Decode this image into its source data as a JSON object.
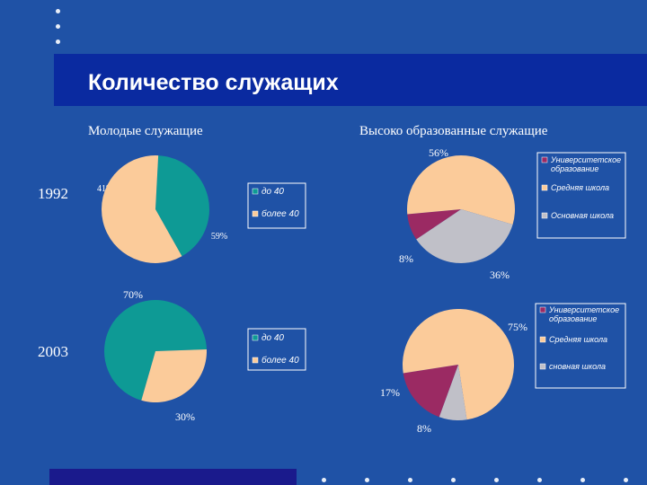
{
  "title": "Количество служащих",
  "chart_data": [
    {
      "type": "pie",
      "title": "Молодые служащие",
      "row_label": "1992",
      "slices": [
        {
          "label": "до 40",
          "value": 41,
          "text": "41%",
          "color": "#0E9A95"
        },
        {
          "label": "более 40",
          "value": 59,
          "text": "59%",
          "color": "#FBCB9A"
        }
      ],
      "legend": [
        "до 40",
        "более 40"
      ]
    },
    {
      "type": "pie",
      "title": "Высоко образованные служащие",
      "row_label": "1992",
      "slices": [
        {
          "label": "Университетское образование",
          "value": 8,
          "text": "8%",
          "color": "#9B2A63"
        },
        {
          "label": "Средняя школа",
          "value": 56,
          "text": "56%",
          "color": "#FBCB9A"
        },
        {
          "label": "Основная школа",
          "value": 36,
          "text": "36%",
          "color": "#C0C0C8"
        }
      ],
      "legend": [
        "Университетское образование",
        "Средняя школа",
        "Основная школа"
      ]
    },
    {
      "type": "pie",
      "title": "Молодые служащие",
      "row_label": "2003",
      "slices": [
        {
          "label": "до 40",
          "value": 70,
          "text": "70%",
          "color": "#0E9A95"
        },
        {
          "label": "более 40",
          "value": 30,
          "text": "30%",
          "color": "#FBCB9A"
        }
      ],
      "legend": [
        "до 40",
        "более 40"
      ]
    },
    {
      "type": "pie",
      "title": "Высоко образованные служащие",
      "row_label": "2003",
      "slices": [
        {
          "label": "Университетское образование",
          "value": 17,
          "text": "17%",
          "color": "#9B2A63"
        },
        {
          "label": "Средняя школа",
          "value": 75,
          "text": "75%",
          "color": "#FBCB9A"
        },
        {
          "label": "сновная школа",
          "value": 8,
          "text": "8%",
          "color": "#C0C0C8"
        }
      ],
      "legend": [
        "Университетское образование",
        "Средняя школа",
        "сновная школа"
      ]
    }
  ]
}
